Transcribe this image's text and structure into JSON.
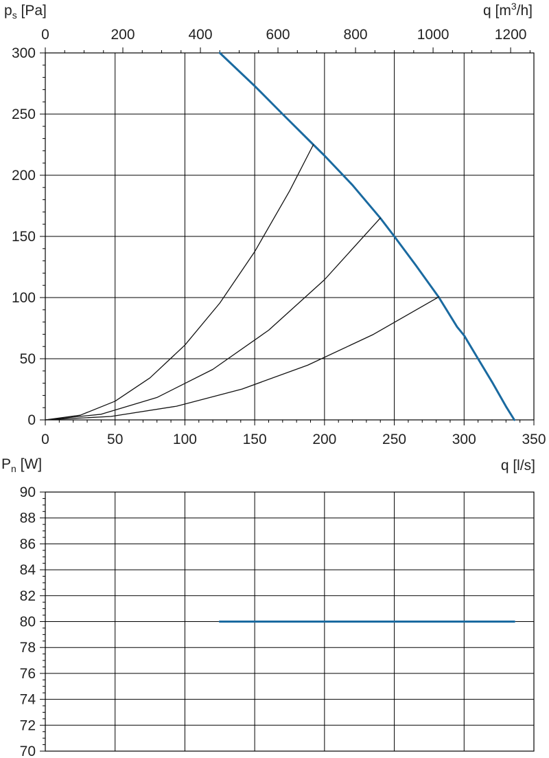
{
  "chart_data": [
    {
      "type": "line",
      "ylabel": {
        "main": "p",
        "sub": "s",
        "unit": " [Pa]"
      },
      "x2label": {
        "main": "q [m",
        "sup": "3",
        "unit": "/h]"
      },
      "xlabel": "q [l/s]",
      "xlim": [
        0,
        350
      ],
      "ylim": [
        0,
        300
      ],
      "x_ticks": [
        0,
        50,
        100,
        150,
        200,
        250,
        300,
        350
      ],
      "x_tick_labels": [
        "0",
        "50",
        "100",
        "150",
        "200",
        "250",
        "300",
        "350"
      ],
      "x2_ticks": [
        0,
        200,
        400,
        600,
        800,
        1000,
        1200
      ],
      "x2_tick_labels": [
        "0",
        "200",
        "400",
        "600",
        "800",
        "1000",
        "1200"
      ],
      "y_ticks": [
        0,
        50,
        100,
        150,
        200,
        250,
        300
      ],
      "y_tick_labels": [
        "0",
        "50",
        "100",
        "150",
        "200",
        "250",
        "300"
      ],
      "grid": true,
      "series": [
        {
          "color": "#1a6aa0",
          "points": [
            [
              125,
              300
            ],
            [
              150,
              273
            ],
            [
              170,
              250
            ],
            [
              192,
              225
            ],
            [
              200,
              216
            ],
            [
              220,
              192
            ],
            [
              240,
              165
            ],
            [
              250,
              150
            ],
            [
              265,
              127
            ],
            [
              282,
              100
            ],
            [
              295,
              76
            ],
            [
              300,
              69
            ],
            [
              310,
              50
            ],
            [
              320,
              31
            ],
            [
              330,
              11
            ],
            [
              336,
              0
            ]
          ]
        },
        {
          "color": "#111111",
          "points": [
            [
              0,
              0
            ],
            [
              25,
              3.8
            ],
            [
              50,
              15.3
            ],
            [
              75,
              34.4
            ],
            [
              100,
              61.1
            ],
            [
              125,
              95.5
            ],
            [
              150,
              137.5
            ],
            [
              175,
              187.2
            ],
            [
              192,
              225
            ]
          ]
        },
        {
          "color": "#111111",
          "points": [
            [
              0,
              0
            ],
            [
              40,
              4.6
            ],
            [
              80,
              18.3
            ],
            [
              120,
              41.3
            ],
            [
              160,
              73.3
            ],
            [
              200,
              114.6
            ],
            [
              240,
              165
            ]
          ]
        },
        {
          "color": "#111111",
          "points": [
            [
              0,
              0
            ],
            [
              47,
              2.8
            ],
            [
              94,
              11.2
            ],
            [
              141,
              25.2
            ],
            [
              188,
              44.7
            ],
            [
              235,
              69.9
            ],
            [
              282,
              100.6
            ]
          ]
        }
      ]
    },
    {
      "type": "line",
      "ylabel": {
        "main": "P",
        "sub": "n",
        "unit": " [W]"
      },
      "xlim": [
        0,
        350
      ],
      "ylim": [
        70,
        90
      ],
      "x_ticks": [
        0,
        50,
        100,
        150,
        200,
        250,
        300,
        350
      ],
      "y_ticks": [
        70,
        72,
        74,
        76,
        78,
        80,
        82,
        84,
        86,
        88,
        90
      ],
      "y_tick_labels": [
        "70",
        "72",
        "74",
        "76",
        "78",
        "80",
        "82",
        "84",
        "86",
        "88",
        "90"
      ],
      "grid": true,
      "series": [
        {
          "color": "#1a6aa0",
          "points": [
            [
              125,
              80
            ],
            [
              336,
              80
            ]
          ]
        }
      ]
    }
  ]
}
